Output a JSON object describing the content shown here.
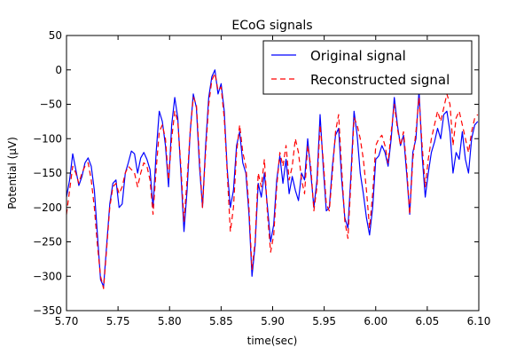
{
  "chart_data": {
    "type": "line",
    "title": "ECoG signals",
    "xlabel": "time(sec)",
    "ylabel": "Potential (μV)",
    "xlim": [
      5.7,
      6.1
    ],
    "ylim": [
      -350,
      50
    ],
    "xticks": [
      5.7,
      5.75,
      5.8,
      5.85,
      5.9,
      5.95,
      6.0,
      6.05,
      6.1
    ],
    "xtick_labels": [
      "5.70",
      "5.75",
      "5.80",
      "5.85",
      "5.90",
      "5.95",
      "6.00",
      "6.05",
      "6.10"
    ],
    "yticks": [
      50,
      0,
      -50,
      -100,
      -150,
      -200,
      -250,
      -300,
      -350
    ],
    "ytick_labels": [
      "50",
      "0",
      "−50",
      "−100",
      "−150",
      "−200",
      "−250",
      "−300",
      "−350"
    ],
    "grid": false,
    "legend_position": "top-right",
    "series": [
      {
        "name": "Original signal",
        "color": "#0000ff",
        "style": "solid",
        "x": [
          5.7,
          5.703,
          5.706,
          5.709,
          5.712,
          5.715,
          5.718,
          5.721,
          5.724,
          5.727,
          5.73,
          5.733,
          5.736,
          5.739,
          5.742,
          5.745,
          5.748,
          5.751,
          5.754,
          5.757,
          5.76,
          5.763,
          5.766,
          5.769,
          5.772,
          5.775,
          5.778,
          5.781,
          5.784,
          5.787,
          5.79,
          5.793,
          5.796,
          5.799,
          5.802,
          5.805,
          5.808,
          5.811,
          5.814,
          5.817,
          5.82,
          5.823,
          5.826,
          5.829,
          5.832,
          5.835,
          5.838,
          5.841,
          5.844,
          5.847,
          5.85,
          5.853,
          5.856,
          5.859,
          5.862,
          5.865,
          5.868,
          5.871,
          5.874,
          5.877,
          5.88,
          5.883,
          5.886,
          5.889,
          5.892,
          5.895,
          5.898,
          5.901,
          5.904,
          5.907,
          5.91,
          5.913,
          5.916,
          5.919,
          5.922,
          5.925,
          5.928,
          5.931,
          5.934,
          5.937,
          5.94,
          5.943,
          5.946,
          5.949,
          5.952,
          5.955,
          5.958,
          5.961,
          5.964,
          5.967,
          5.97,
          5.973,
          5.976,
          5.979,
          5.982,
          5.985,
          5.988,
          5.991,
          5.994,
          5.997,
          6.0,
          6.003,
          6.006,
          6.009,
          6.012,
          6.015,
          6.018,
          6.021,
          6.024,
          6.027,
          6.03,
          6.033,
          6.036,
          6.039,
          6.042,
          6.045,
          6.048,
          6.051,
          6.054,
          6.057,
          6.06,
          6.063,
          6.066,
          6.069,
          6.072,
          6.075,
          6.078,
          6.081,
          6.084,
          6.087,
          6.09,
          6.093,
          6.096,
          6.099
        ],
        "y": [
          -185,
          -160,
          -122,
          -145,
          -168,
          -155,
          -135,
          -128,
          -140,
          -175,
          -240,
          -305,
          -315,
          -255,
          -195,
          -165,
          -160,
          -200,
          -195,
          -150,
          -135,
          -118,
          -122,
          -150,
          -128,
          -120,
          -130,
          -145,
          -200,
          -120,
          -60,
          -75,
          -110,
          -170,
          -80,
          -40,
          -70,
          -150,
          -235,
          -175,
          -90,
          -35,
          -55,
          -140,
          -200,
          -110,
          -40,
          -10,
          0,
          -35,
          -20,
          -60,
          -145,
          -200,
          -175,
          -110,
          -90,
          -135,
          -150,
          -210,
          -300,
          -255,
          -165,
          -185,
          -150,
          -200,
          -250,
          -225,
          -160,
          -125,
          -165,
          -130,
          -180,
          -155,
          -175,
          -190,
          -150,
          -160,
          -100,
          -150,
          -200,
          -160,
          -65,
          -140,
          -205,
          -200,
          -140,
          -95,
          -85,
          -160,
          -215,
          -230,
          -150,
          -60,
          -95,
          -150,
          -180,
          -215,
          -240,
          -200,
          -130,
          -125,
          -110,
          -120,
          -140,
          -100,
          -40,
          -80,
          -110,
          -95,
          -150,
          -210,
          -120,
          -100,
          -30,
          -125,
          -185,
          -150,
          -120,
          -105,
          -85,
          -100,
          -65,
          -60,
          -90,
          -150,
          -120,
          -130,
          -90,
          -130,
          -150,
          -100,
          -80,
          -75
        ]
      },
      {
        "name": "Reconstructed signal",
        "color": "#ff0000",
        "style": "dashed",
        "x": [
          5.7,
          5.703,
          5.706,
          5.709,
          5.712,
          5.715,
          5.718,
          5.721,
          5.724,
          5.727,
          5.73,
          5.733,
          5.736,
          5.739,
          5.742,
          5.745,
          5.748,
          5.751,
          5.754,
          5.757,
          5.76,
          5.763,
          5.766,
          5.769,
          5.772,
          5.775,
          5.778,
          5.781,
          5.784,
          5.787,
          5.79,
          5.793,
          5.796,
          5.799,
          5.802,
          5.805,
          5.808,
          5.811,
          5.814,
          5.817,
          5.82,
          5.823,
          5.826,
          5.829,
          5.832,
          5.835,
          5.838,
          5.841,
          5.844,
          5.847,
          5.85,
          5.853,
          5.856,
          5.859,
          5.862,
          5.865,
          5.868,
          5.871,
          5.874,
          5.877,
          5.88,
          5.883,
          5.886,
          5.889,
          5.892,
          5.895,
          5.898,
          5.901,
          5.904,
          5.907,
          5.91,
          5.913,
          5.916,
          5.919,
          5.922,
          5.925,
          5.928,
          5.931,
          5.934,
          5.937,
          5.94,
          5.943,
          5.946,
          5.949,
          5.952,
          5.955,
          5.958,
          5.961,
          5.964,
          5.967,
          5.97,
          5.973,
          5.976,
          5.979,
          5.982,
          5.985,
          5.988,
          5.991,
          5.994,
          5.997,
          6.0,
          6.003,
          6.006,
          6.009,
          6.012,
          6.015,
          6.018,
          6.021,
          6.024,
          6.027,
          6.03,
          6.033,
          6.036,
          6.039,
          6.042,
          6.045,
          6.048,
          6.051,
          6.054,
          6.057,
          6.06,
          6.063,
          6.066,
          6.069,
          6.072,
          6.075,
          6.078,
          6.081,
          6.084,
          6.087,
          6.09,
          6.093,
          6.096,
          6.099
        ],
        "y": [
          -210,
          -175,
          -140,
          -150,
          -165,
          -150,
          -140,
          -135,
          -160,
          -200,
          -255,
          -300,
          -318,
          -260,
          -200,
          -170,
          -165,
          -180,
          -170,
          -150,
          -140,
          -145,
          -150,
          -170,
          -150,
          -135,
          -140,
          -160,
          -210,
          -145,
          -90,
          -80,
          -100,
          -160,
          -100,
          -60,
          -75,
          -140,
          -220,
          -160,
          -90,
          -40,
          -50,
          -130,
          -200,
          -120,
          -50,
          -15,
          -5,
          -30,
          -25,
          -70,
          -150,
          -235,
          -200,
          -120,
          -80,
          -120,
          -140,
          -200,
          -290,
          -250,
          -150,
          -170,
          -130,
          -210,
          -265,
          -240,
          -170,
          -120,
          -140,
          -110,
          -160,
          -140,
          -100,
          -120,
          -160,
          -180,
          -110,
          -140,
          -205,
          -170,
          -80,
          -130,
          -195,
          -205,
          -150,
          -90,
          -65,
          -145,
          -220,
          -245,
          -160,
          -70,
          -80,
          -100,
          -130,
          -175,
          -230,
          -180,
          -110,
          -100,
          -95,
          -110,
          -135,
          -90,
          -50,
          -85,
          -110,
          -90,
          -140,
          -210,
          -130,
          -90,
          -40,
          -110,
          -170,
          -130,
          -100,
          -80,
          -60,
          -75,
          -55,
          -35,
          -50,
          -110,
          -70,
          -60,
          -80,
          -100,
          -120,
          -90,
          -70,
          -65
        ]
      }
    ]
  }
}
